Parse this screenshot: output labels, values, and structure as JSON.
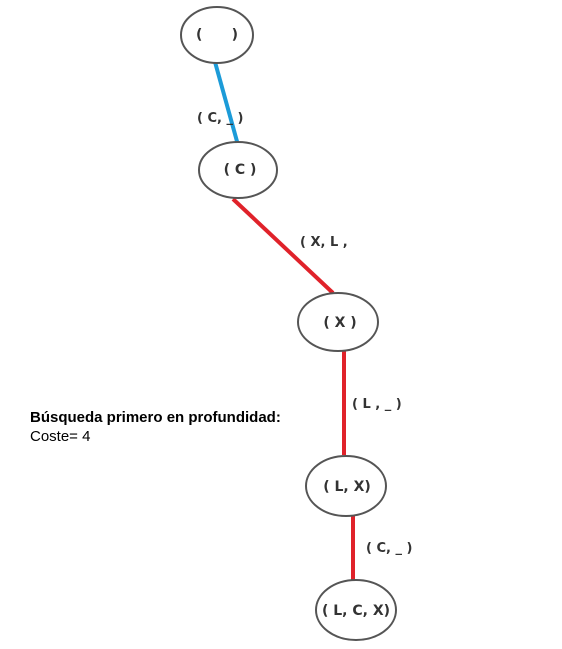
{
  "diagram": {
    "nodes": [
      {
        "id": "n0",
        "label": "(      )"
      },
      {
        "id": "n1",
        "label": "( C )"
      },
      {
        "id": "n2",
        "label": "( X )"
      },
      {
        "id": "n3",
        "label": "( L, X)"
      },
      {
        "id": "n4",
        "label": "( L, C, X)"
      }
    ],
    "edges": [
      {
        "from": "n0",
        "to": "n1",
        "label": "( C, _ )",
        "color": "#1c9bd8"
      },
      {
        "from": "n1",
        "to": "n2",
        "label": "( X, L ,",
        "color": "#e0222a"
      },
      {
        "from": "n2",
        "to": "n3",
        "label": "( L , _ )",
        "color": "#e0222a"
      },
      {
        "from": "n3",
        "to": "n4",
        "label": "( C, _ )",
        "color": "#e0222a"
      }
    ]
  },
  "info": {
    "title": "Búsqueda primero en profundidad:",
    "cost": "Coste= 4"
  }
}
